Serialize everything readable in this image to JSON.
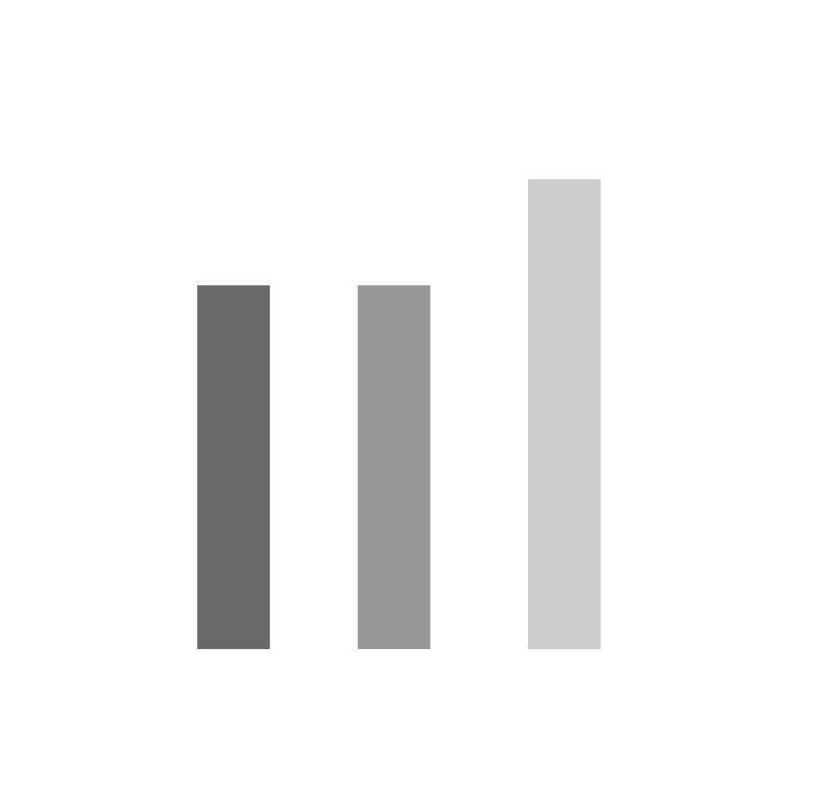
{
  "chart_data": {
    "type": "bar",
    "categories": [
      "",
      "",
      ""
    ],
    "values": [
      3.43,
      3.43,
      4.43
    ],
    "colors": [
      "#686868",
      "#989898",
      "#cccccc"
    ],
    "title": "",
    "xlabel": "",
    "ylabel": "",
    "ylim": [
      0,
      6
    ],
    "axes_visible": false,
    "grid": false,
    "legend": false
  }
}
